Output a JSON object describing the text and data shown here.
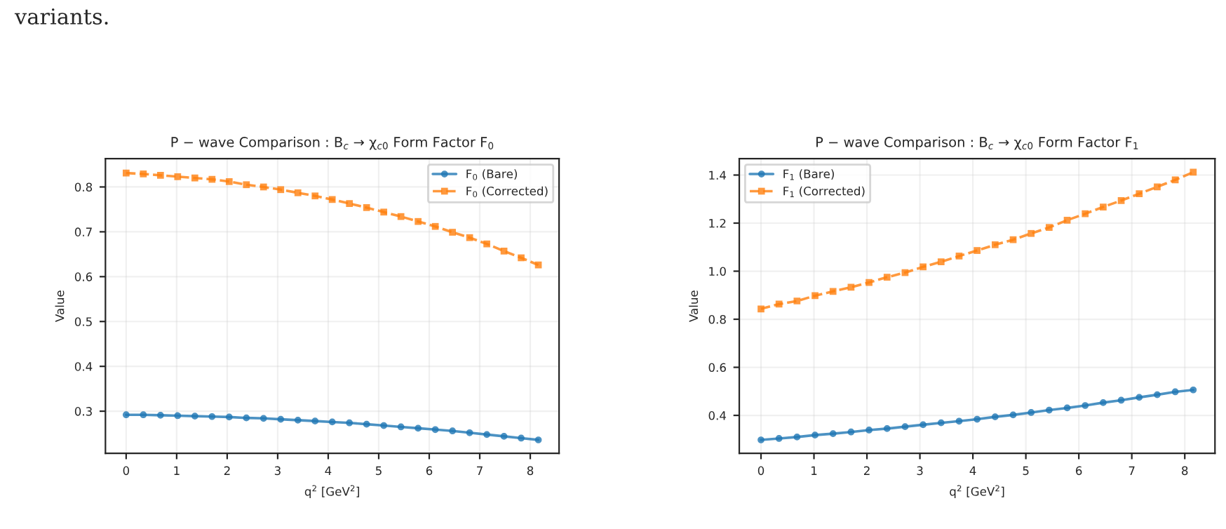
{
  "chart_data": [
    {
      "type": "line",
      "title": "P − wave Comparison : B$_{c}$ → χ$_{c0}$ Form Factor F$_{0}$",
      "xlabel": "q$^{2}$ [GeV$^{2}$]",
      "ylabel": "Value",
      "annotations": [
        "variants."
      ],
      "x": [
        0,
        0.34,
        0.68,
        1.02,
        1.36,
        1.7,
        2.04,
        2.38,
        2.72,
        3.06,
        3.4,
        3.74,
        4.08,
        4.42,
        4.76,
        5.1,
        5.44,
        5.78,
        6.12,
        6.46,
        6.8,
        7.14,
        7.48,
        7.82,
        8.16
      ],
      "series": [
        {
          "name": "F$_{0}$ (Bare)",
          "color": "#1f77b4",
          "marker": "circle",
          "line_style": "solid",
          "values": [
            0.292,
            0.292,
            0.291,
            0.29,
            0.289,
            0.288,
            0.287,
            0.285,
            0.284,
            0.282,
            0.28,
            0.278,
            0.276,
            0.274,
            0.271,
            0.268,
            0.265,
            0.262,
            0.259,
            0.256,
            0.252,
            0.248,
            0.244,
            0.24,
            0.236
          ]
        },
        {
          "name": "F$_{0}$ (Corrected)",
          "color": "#ff7f0e",
          "marker": "square",
          "line_style": "dashed",
          "values": [
            0.831,
            0.829,
            0.826,
            0.823,
            0.82,
            0.817,
            0.812,
            0.805,
            0.8,
            0.794,
            0.787,
            0.78,
            0.772,
            0.763,
            0.754,
            0.744,
            0.734,
            0.723,
            0.712,
            0.699,
            0.687,
            0.673,
            0.657,
            0.642,
            0.626
          ]
        }
      ],
      "xlim": [
        -0.41,
        8.57
      ],
      "xticks": [
        0,
        1,
        2,
        3,
        4,
        5,
        6,
        7,
        8
      ],
      "ylim": [
        0.206,
        0.863
      ],
      "yticks": [
        0.3,
        0.4,
        0.5,
        0.6,
        0.7,
        0.8
      ],
      "grid": true,
      "legend": "top right"
    },
    {
      "type": "line",
      "title": "P − wave Comparison : B$_{c}$ → χ$_{c0}$ Form Factor F$_{1}$",
      "xlabel": "q$^{2}$ [GeV$^{2}$]",
      "ylabel": "Value",
      "x": [
        0,
        0.34,
        0.68,
        1.02,
        1.36,
        1.7,
        2.04,
        2.38,
        2.72,
        3.06,
        3.4,
        3.74,
        4.08,
        4.42,
        4.76,
        5.1,
        5.44,
        5.78,
        6.12,
        6.46,
        6.8,
        7.14,
        7.48,
        7.82,
        8.16
      ],
      "series": [
        {
          "name": "F$_{1}$ (Bare)",
          "color": "#1f77b4",
          "marker": "circle",
          "line_style": "solid",
          "values": [
            0.298,
            0.304,
            0.31,
            0.318,
            0.324,
            0.331,
            0.339,
            0.345,
            0.353,
            0.361,
            0.369,
            0.376,
            0.384,
            0.394,
            0.402,
            0.412,
            0.422,
            0.431,
            0.441,
            0.453,
            0.463,
            0.475,
            0.486,
            0.498,
            0.506
          ]
        },
        {
          "name": "F$_{1}$ (Corrected)",
          "color": "#ff7f0e",
          "marker": "square",
          "line_style": "dashed",
          "values": [
            0.843,
            0.863,
            0.876,
            0.898,
            0.916,
            0.933,
            0.953,
            0.975,
            0.994,
            1.018,
            1.039,
            1.063,
            1.086,
            1.11,
            1.131,
            1.157,
            1.182,
            1.212,
            1.239,
            1.267,
            1.294,
            1.322,
            1.351,
            1.38,
            1.412
          ]
        }
      ],
      "xlim": [
        -0.41,
        8.57
      ],
      "xticks": [
        0,
        1,
        2,
        3,
        4,
        5,
        6,
        7,
        8
      ],
      "ylim": [
        0.242,
        1.468
      ],
      "yticks": [
        {
          "value": 0.4,
          "label": "0.4"
        },
        {
          "value": 0.6,
          "label": "0.6"
        },
        {
          "value": 0.8,
          "label": "0.8"
        },
        {
          "value": 1.0,
          "label": "1.0"
        },
        {
          "value": 1.2,
          "label": "1.2"
        },
        {
          "value": 1.4,
          "label": "1.4"
        }
      ],
      "grid": true,
      "legend": "top left"
    }
  ]
}
